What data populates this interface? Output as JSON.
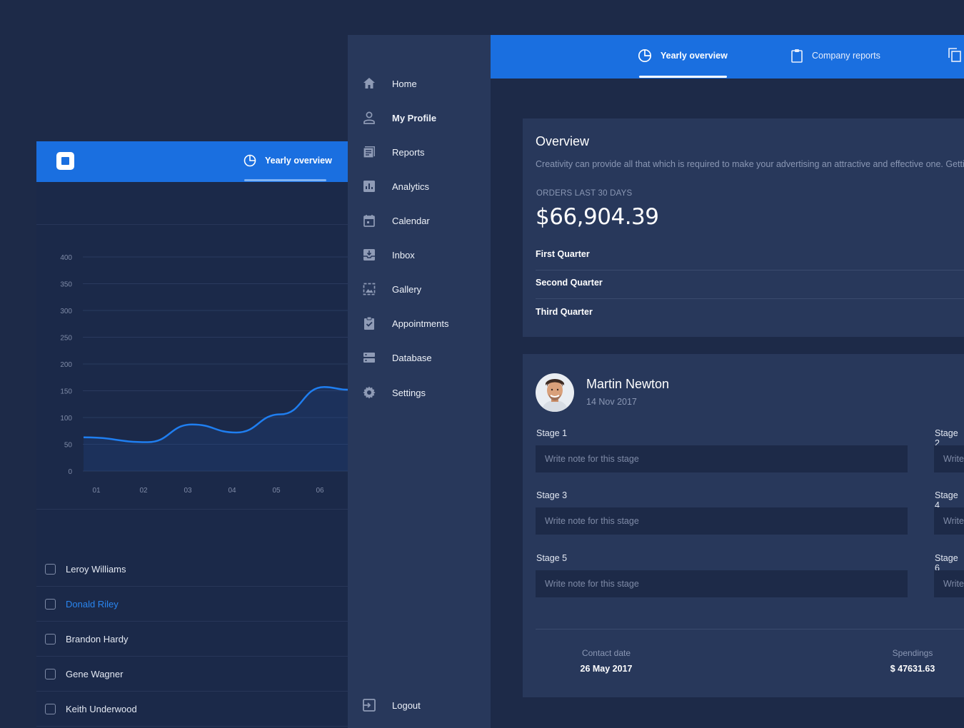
{
  "left_panel": {
    "tab_label": "Yearly overview",
    "people": [
      {
        "name": "Leroy Williams",
        "highlighted": false
      },
      {
        "name": "Donald Riley",
        "highlighted": true
      },
      {
        "name": "Brandon Hardy",
        "highlighted": false
      },
      {
        "name": "Gene Wagner",
        "highlighted": false
      },
      {
        "name": "Keith Underwood",
        "highlighted": false
      }
    ]
  },
  "chart_data": {
    "type": "area",
    "categories": [
      "01",
      "02",
      "03",
      "04",
      "05",
      "06"
    ],
    "series": [
      {
        "values": [
          63,
          54,
          87,
          72,
          106,
          157
        ]
      }
    ],
    "y_ticks": [
      0,
      50,
      100,
      150,
      200,
      250,
      300,
      350,
      400
    ],
    "ylim": [
      0,
      400
    ],
    "grid": true,
    "line_color": "#1f7ef0"
  },
  "sidebar": {
    "items": [
      {
        "label": "Home",
        "icon": "home-icon",
        "bold": false
      },
      {
        "label": "My Profile",
        "icon": "user-icon",
        "bold": true
      },
      {
        "label": "Reports",
        "icon": "reports-icon",
        "bold": false
      },
      {
        "label": "Analytics",
        "icon": "analytics-icon",
        "bold": false
      },
      {
        "label": "Calendar",
        "icon": "calendar-icon",
        "bold": false
      },
      {
        "label": "Inbox",
        "icon": "inbox-icon",
        "bold": false
      },
      {
        "label": "Gallery",
        "icon": "gallery-icon",
        "bold": false
      },
      {
        "label": "Appointments",
        "icon": "appointments-icon",
        "bold": false
      },
      {
        "label": "Database",
        "icon": "database-icon",
        "bold": false
      },
      {
        "label": "Settings",
        "icon": "gear-icon",
        "bold": false
      }
    ],
    "logout_label": "Logout"
  },
  "main": {
    "tabs": [
      {
        "label": "Yearly overview",
        "active": true
      },
      {
        "label": "Company reports",
        "active": false
      }
    ],
    "overview": {
      "title": "Overview",
      "description": "Creativity can provide all that which is required to make your advertising an attractive and effective one. Getting",
      "orders_label": "ORDERS LAST 30 DAYS",
      "amount": "$66,904.39",
      "quarters": [
        "First Quarter",
        "Second Quarter",
        "Third Quarter"
      ]
    },
    "profile": {
      "name": "Martin Newton",
      "date": "14 Nov 2017",
      "stages": [
        {
          "label": "Stage 1",
          "placeholder": "Write note for this stage"
        },
        {
          "label": "Stage 2",
          "placeholder": "Write note for this stage"
        },
        {
          "label": "Stage 3",
          "placeholder": "Write note for this stage"
        },
        {
          "label": "Stage 4",
          "placeholder": "Write note for this stage"
        },
        {
          "label": "Stage 5",
          "placeholder": "Write note for this stage"
        },
        {
          "label": "Stage 6",
          "placeholder": "Write note for this stage"
        }
      ],
      "contact_label": "Contact date",
      "contact_value": "26 May 2017",
      "spendings_label": "Spendings",
      "spendings_value": "$ 47631.63"
    }
  },
  "colors": {
    "accent": "#1a6fe0",
    "background": "#1d2a48",
    "card": "#28385b",
    "link": "#2a86f0"
  }
}
